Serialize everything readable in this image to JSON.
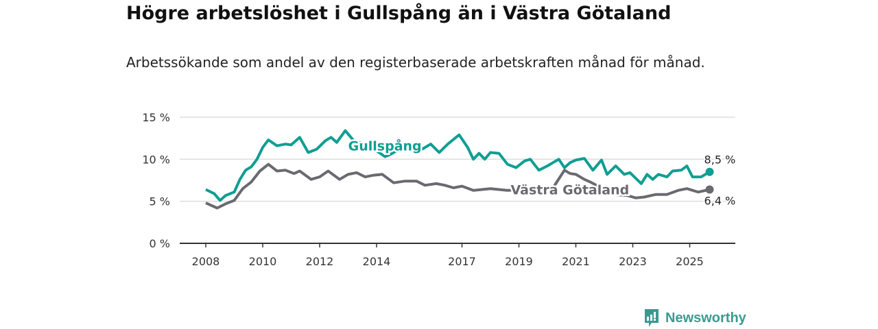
{
  "title": "Högre arbetslöshet i Gullspång än i Västra Götaland",
  "subtitle": "Arbetssökande som andel av den registerbaserade arbetskraften månad för månad.",
  "logo": {
    "text": "Newsworthy",
    "color": "#3a9a90"
  },
  "chart_data": {
    "type": "line",
    "title": "Högre arbetslöshet i Gullspång än i Västra Götaland",
    "xlabel": "",
    "ylabel": "",
    "ylim": [
      0,
      15
    ],
    "xlim": [
      2007.7,
      2026.4
    ],
    "y_ticks": [
      {
        "v": 0,
        "label": "0 %"
      },
      {
        "v": 5,
        "label": "5 %"
      },
      {
        "v": 10,
        "label": "10 %"
      },
      {
        "v": 15,
        "label": "15 %"
      }
    ],
    "x_ticks": [
      {
        "v": 2008,
        "label": "2008"
      },
      {
        "v": 2010,
        "label": "2010"
      },
      {
        "v": 2012,
        "label": "2012"
      },
      {
        "v": 2014,
        "label": "2014"
      },
      {
        "v": 2017,
        "label": "2017"
      },
      {
        "v": 2019,
        "label": "2019"
      },
      {
        "v": 2021,
        "label": "2021"
      },
      {
        "v": 2023,
        "label": "2023"
      },
      {
        "v": 2025,
        "label": "2025"
      }
    ],
    "grid": true,
    "series": [
      {
        "name": "Gullspång",
        "color": "#0f9e92",
        "end_label": "8,5 %",
        "label_at": [
          2013.1,
          11.6
        ],
        "x": [
          2008.0,
          2008.3,
          2008.5,
          2008.7,
          2009.0,
          2009.2,
          2009.4,
          2009.6,
          2009.8,
          2010.0,
          2010.2,
          2010.5,
          2010.8,
          2011.0,
          2011.3,
          2011.6,
          2011.9,
          2012.2,
          2012.4,
          2012.6,
          2012.9,
          2013.2,
          2013.6,
          2014.0,
          2014.3,
          2014.5,
          2015.0,
          2015.3,
          2015.6,
          2015.9,
          2016.2,
          2016.5,
          2016.9,
          2017.2,
          2017.4,
          2017.6,
          2017.8,
          2018.0,
          2018.3,
          2018.6,
          2018.9,
          2019.2,
          2019.4,
          2019.7,
          2020.0,
          2020.2,
          2020.4,
          2020.6,
          2020.8,
          2021.0,
          2021.3,
          2021.6,
          2021.9,
          2022.1,
          2022.4,
          2022.7,
          2022.9,
          2023.3,
          2023.5,
          2023.7,
          2023.9,
          2024.2,
          2024.4,
          2024.7,
          2024.9,
          2025.1,
          2025.4,
          2025.7
        ],
        "values": [
          6.4,
          5.9,
          5.1,
          5.7,
          6.1,
          7.6,
          8.7,
          9.1,
          10.0,
          11.4,
          12.3,
          11.6,
          11.8,
          11.7,
          12.6,
          10.8,
          11.2,
          12.2,
          12.6,
          12.0,
          13.4,
          12.2,
          11.8,
          11.0,
          10.3,
          10.6,
          11.6,
          11.8,
          11.2,
          11.8,
          10.8,
          11.8,
          12.9,
          11.4,
          10.0,
          10.7,
          10.0,
          10.8,
          10.7,
          9.4,
          9.0,
          9.8,
          10.0,
          8.7,
          9.2,
          9.6,
          10.0,
          9.0,
          9.6,
          9.9,
          10.1,
          8.7,
          9.9,
          8.2,
          9.2,
          8.2,
          8.4,
          7.1,
          8.2,
          7.6,
          8.2,
          7.9,
          8.6,
          8.7,
          9.2,
          7.9,
          7.9,
          8.5
        ]
      },
      {
        "name": "Västra Götaland",
        "color": "#6b6970",
        "end_label": "6,4 %",
        "label_at": [
          2019.0,
          6.4
        ],
        "x": [
          2008.0,
          2008.4,
          2008.7,
          2009.0,
          2009.3,
          2009.6,
          2009.9,
          2010.2,
          2010.5,
          2010.8,
          2011.1,
          2011.3,
          2011.7,
          2012.0,
          2012.3,
          2012.7,
          2013.0,
          2013.3,
          2013.6,
          2013.9,
          2014.2,
          2014.6,
          2015.0,
          2015.4,
          2015.7,
          2016.1,
          2016.4,
          2016.7,
          2017.0,
          2017.4,
          2018.0,
          2018.6,
          2019.2,
          2019.8,
          2020.2,
          2020.6,
          2020.8,
          2021.0,
          2021.3,
          2021.5,
          2022.0,
          2022.3,
          2022.8,
          2023.1,
          2023.4,
          2023.8,
          2024.2,
          2024.6,
          2024.9,
          2025.3,
          2025.7
        ],
        "values": [
          4.8,
          4.2,
          4.7,
          5.1,
          6.5,
          7.3,
          8.6,
          9.4,
          8.6,
          8.7,
          8.3,
          8.6,
          7.6,
          7.9,
          8.6,
          7.6,
          8.2,
          8.4,
          7.9,
          8.1,
          8.2,
          7.2,
          7.4,
          7.4,
          6.9,
          7.1,
          6.9,
          6.6,
          6.8,
          6.3,
          6.5,
          6.3,
          6.4,
          6.3,
          6.6,
          8.7,
          8.3,
          8.2,
          7.6,
          7.3,
          6.4,
          5.8,
          5.7,
          5.4,
          5.5,
          5.8,
          5.8,
          6.3,
          6.5,
          6.1,
          6.4
        ]
      }
    ]
  }
}
